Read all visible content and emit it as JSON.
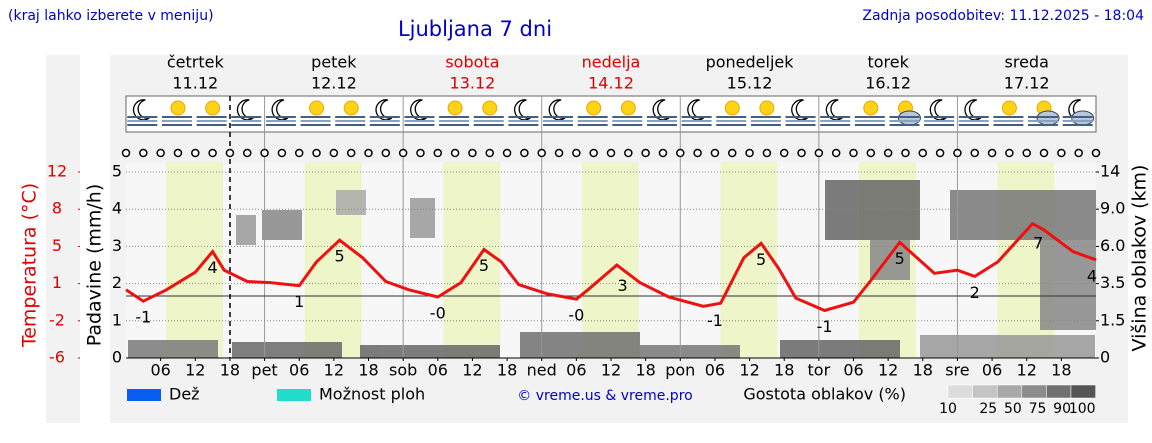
{
  "header": {
    "note": "(kraj lahko izberete v meniju)",
    "updated": "Zadnja posodobitev: 11.12.2025 - 18:04"
  },
  "chart_data": {
    "type": "line",
    "title": "Ljubljana 7 dni",
    "days": [
      {
        "name": "četrtek",
        "date": "11.12",
        "color": "#000000"
      },
      {
        "name": "petek",
        "date": "12.12",
        "color": "#000000"
      },
      {
        "name": "sobota",
        "date": "13.12",
        "color": "#e00000"
      },
      {
        "name": "nedelja",
        "date": "14.12",
        "color": "#e00000"
      },
      {
        "name": "ponedeljek",
        "date": "15.12",
        "color": "#000000"
      },
      {
        "name": "torek",
        "date": "16.12",
        "color": "#000000"
      },
      {
        "name": "sreda",
        "date": "17.12",
        "color": "#000000"
      }
    ],
    "xlim": [
      0,
      168
    ],
    "xticks": [
      {
        "value": 6,
        "label": "06"
      },
      {
        "value": 12,
        "label": "12"
      },
      {
        "value": 18,
        "label": "18"
      },
      {
        "value": 24,
        "label": "pet"
      },
      {
        "value": 30,
        "label": "06"
      },
      {
        "value": 36,
        "label": "12"
      },
      {
        "value": 42,
        "label": "18"
      },
      {
        "value": 48,
        "label": "sob"
      },
      {
        "value": 54,
        "label": "06"
      },
      {
        "value": 60,
        "label": "12"
      },
      {
        "value": 66,
        "label": "18"
      },
      {
        "value": 72,
        "label": "ned"
      },
      {
        "value": 78,
        "label": "06"
      },
      {
        "value": 84,
        "label": "12"
      },
      {
        "value": 90,
        "label": "18"
      },
      {
        "value": 96,
        "label": "pon"
      },
      {
        "value": 102,
        "label": "06"
      },
      {
        "value": 108,
        "label": "12"
      },
      {
        "value": 114,
        "label": "18"
      },
      {
        "value": 120,
        "label": "tor"
      },
      {
        "value": 126,
        "label": "06"
      },
      {
        "value": 132,
        "label": "12"
      },
      {
        "value": 138,
        "label": "18"
      },
      {
        "value": 144,
        "label": "sre"
      },
      {
        "value": 150,
        "label": "06"
      },
      {
        "value": 156,
        "label": "12"
      },
      {
        "value": 162,
        "label": "18"
      }
    ],
    "ylabel": "Padavine (mm/h)",
    "ylim": [
      0,
      5
    ],
    "yticks": [
      0,
      1,
      2,
      3,
      4,
      5
    ],
    "temp_label": "Temperatura (°C)",
    "templim": [
      -6,
      12
    ],
    "tempticks": [
      -6,
      {
        "value": -2.4,
        "label": "-2"
      },
      {
        "value": 1.2,
        "label": "1"
      },
      {
        "value": 4.8,
        "label": "5"
      },
      {
        "value": 8.4,
        "label": "8"
      },
      12
    ],
    "y2label": "Višina oblakov (km)",
    "y2ticks": [
      0,
      1.5,
      3.5,
      {
        "value": 6,
        "label": "6.0"
      },
      {
        "value": 9,
        "label": "9.0"
      },
      14
    ],
    "grid": true,
    "x": [
      0,
      3,
      7,
      12,
      15,
      17,
      21,
      25,
      30,
      33,
      37,
      41,
      45,
      49,
      54,
      58,
      62,
      65,
      68,
      73,
      78,
      80,
      85,
      89,
      94,
      100,
      103,
      107,
      110,
      113,
      116,
      121,
      126,
      129,
      134,
      136,
      140,
      144,
      147,
      151,
      157,
      159,
      164,
      168
    ],
    "series": [
      {
        "color": "#ee1111",
        "values": [
          0.6,
          -0.5,
          0.6,
          2.3,
          4.3,
          2.5,
          1.4,
          1.3,
          1.0,
          3.3,
          5.4,
          3.7,
          1.4,
          0.6,
          -0.1,
          1.3,
          4.5,
          3.3,
          1.1,
          0.2,
          -0.3,
          0.6,
          3.0,
          1.3,
          -0.1,
          -1.0,
          -0.7,
          3.7,
          5.1,
          2.7,
          -0.2,
          -1.4,
          -0.6,
          1.5,
          5.2,
          4.2,
          2.2,
          2.5,
          1.9,
          3.3,
          7.0,
          6.4,
          4.3,
          3.5
        ]
      }
    ],
    "extremes": [
      {
        "x": 3,
        "label": "-1"
      },
      {
        "x": 15,
        "label": "4"
      },
      {
        "x": 30,
        "label": "1"
      },
      {
        "x": 37,
        "label": "5"
      },
      {
        "x": 54,
        "label": "-0"
      },
      {
        "x": 62,
        "label": "5"
      },
      {
        "x": 78,
        "label": "-0"
      },
      {
        "x": 86,
        "label": "3"
      },
      {
        "x": 102,
        "label": "-1"
      },
      {
        "x": 110,
        "label": "5"
      },
      {
        "x": 121,
        "label": "-1"
      },
      {
        "x": 134,
        "label": "5"
      },
      {
        "x": 147,
        "label": "2"
      },
      {
        "x": 158,
        "label": "7"
      },
      {
        "x": 168,
        "label": "4"
      }
    ],
    "legend": [
      {
        "name": "Dež",
        "color": "#0a5ef0"
      },
      {
        "name": "Možnost ploh",
        "color": "#22ddcc"
      }
    ],
    "credit": "© vreme.us & vreme.pro",
    "cloud_scale": {
      "title": "Gostota oblakov (%)",
      "levels": [
        10,
        25,
        50,
        75,
        90,
        100
      ],
      "colors": [
        "#dcdcdc",
        "#c4c4c4",
        "#a8a8a8",
        "#8c8c8c",
        "#707070",
        "#555555"
      ]
    }
  }
}
